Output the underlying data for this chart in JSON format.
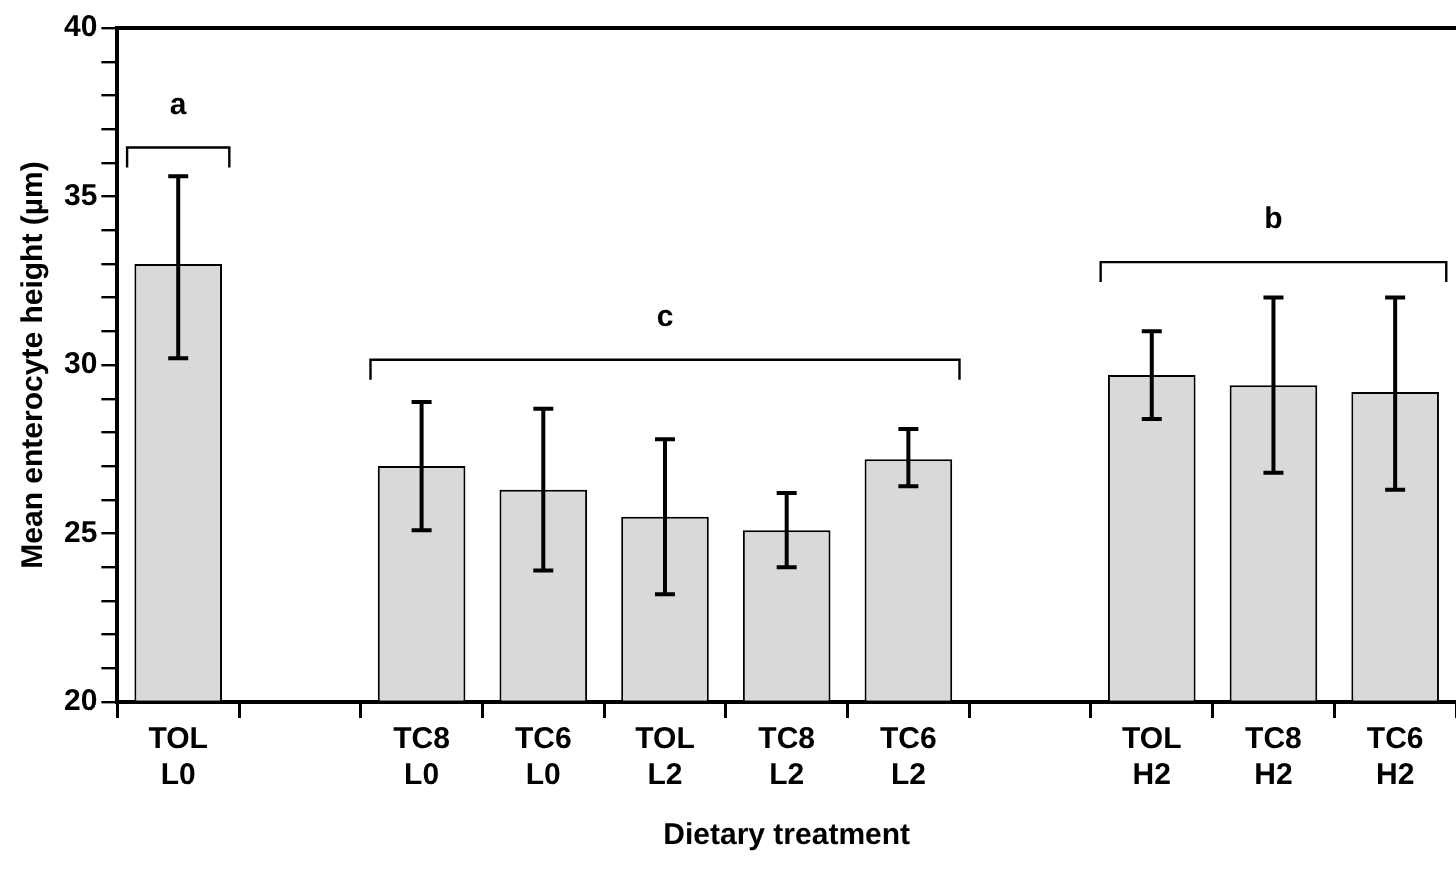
{
  "chart_data": {
    "type": "bar",
    "xlabel": "Dietary treatment",
    "ylabel": "Mean enterocyte height (µm)",
    "categories": [
      "TOL\nL0",
      null,
      "TC8\nL0",
      "TC6\nL0",
      "TOL\nL2",
      "TC8\nL2",
      "TC6\nL2",
      null,
      "TOL\nH2",
      "TC8\nH2",
      "TC6\nH2"
    ],
    "values": [
      33.0,
      null,
      27.0,
      26.3,
      25.5,
      25.1,
      27.2,
      null,
      29.7,
      29.4,
      29.2
    ],
    "errors": [
      [
        30.2,
        35.6
      ],
      null,
      [
        25.1,
        28.9
      ],
      [
        23.9,
        28.7
      ],
      [
        23.2,
        27.8
      ],
      [
        24.0,
        26.2
      ],
      [
        26.4,
        28.1
      ],
      null,
      [
        28.4,
        31.0
      ],
      [
        26.8,
        32.0
      ],
      [
        26.3,
        32.0
      ]
    ],
    "color": "#d9d9d9",
    "ylim": [
      20,
      40
    ],
    "yticks": [
      20,
      {
        "value": 21,
        "label": null
      },
      {
        "value": 22,
        "label": null
      },
      {
        "value": 23,
        "label": null
      },
      {
        "value": 24,
        "label": null
      },
      25,
      {
        "value": 26,
        "label": null
      },
      {
        "value": 27,
        "label": null
      },
      {
        "value": 28,
        "label": null
      },
      {
        "value": 29,
        "label": null
      },
      30,
      {
        "value": 31,
        "label": null
      },
      {
        "value": 32,
        "label": null
      },
      {
        "value": 33,
        "label": null
      },
      {
        "value": 34,
        "label": null
      },
      35,
      {
        "value": 36,
        "label": null
      },
      {
        "value": 37,
        "label": null
      },
      {
        "value": 38,
        "label": null
      },
      {
        "value": 39,
        "label": null
      },
      40
    ],
    "grid": false,
    "legend": false,
    "annotations": [
      "a",
      "c",
      "b"
    ]
  }
}
